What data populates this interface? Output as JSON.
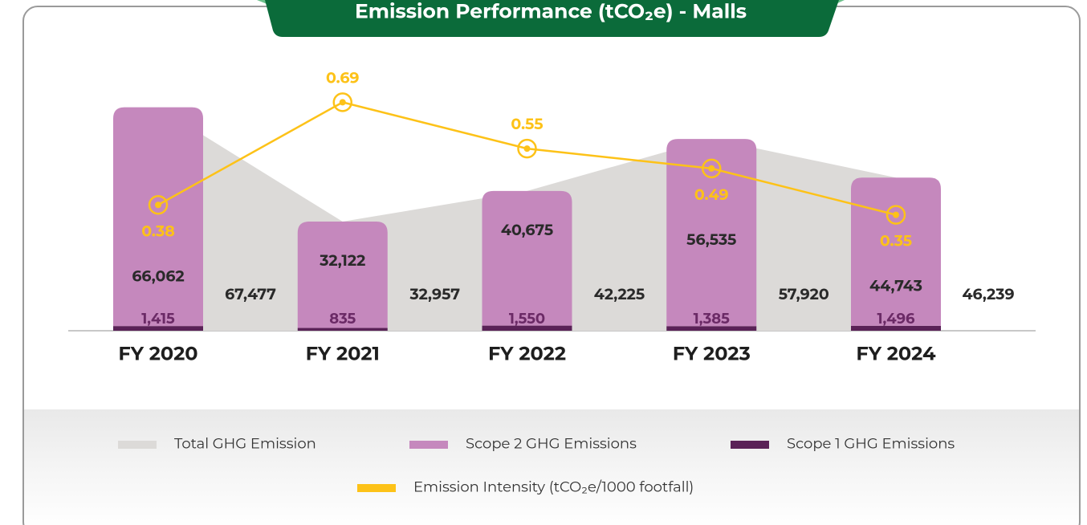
{
  "chart_data": {
    "type": "bar",
    "title": "Emission Performance (tCO₂e) - Malls",
    "categories": [
      "FY 2020",
      "FY 2021",
      "FY 2022",
      "FY 2023",
      "FY 2024"
    ],
    "series": [
      {
        "name": "Total GHG Emission",
        "type": "area",
        "color": "#dcdad8",
        "values": [
          67477,
          32957,
          42225,
          57920,
          46239
        ],
        "value_labels": [
          "67,477",
          "32,957",
          "42,225",
          "57,920",
          "46,239"
        ]
      },
      {
        "name": "Scope 2 GHG Emissions",
        "type": "bar",
        "color": "#c588bd",
        "values": [
          66062,
          32122,
          40675,
          56535,
          44743
        ],
        "value_labels": [
          "66,062",
          "32,122",
          "40,675",
          "56,535",
          "44,743"
        ]
      },
      {
        "name": "Scope 1 GHG Emissions",
        "type": "bar",
        "color": "#5a2257",
        "values": [
          1415,
          835,
          1550,
          1385,
          1496
        ],
        "value_labels": [
          "1,415",
          "835",
          "1,550",
          "1,385",
          "1,496"
        ]
      },
      {
        "name": "Emission Intensity (tCO₂e/1000 footfall)",
        "type": "line",
        "axis": "y2",
        "color": "#fdc218",
        "values": [
          0.38,
          0.69,
          0.55,
          0.49,
          0.35
        ]
      }
    ],
    "ylim": [
      0,
      80000
    ],
    "y2lim": [
      0,
      0.8
    ]
  }
}
